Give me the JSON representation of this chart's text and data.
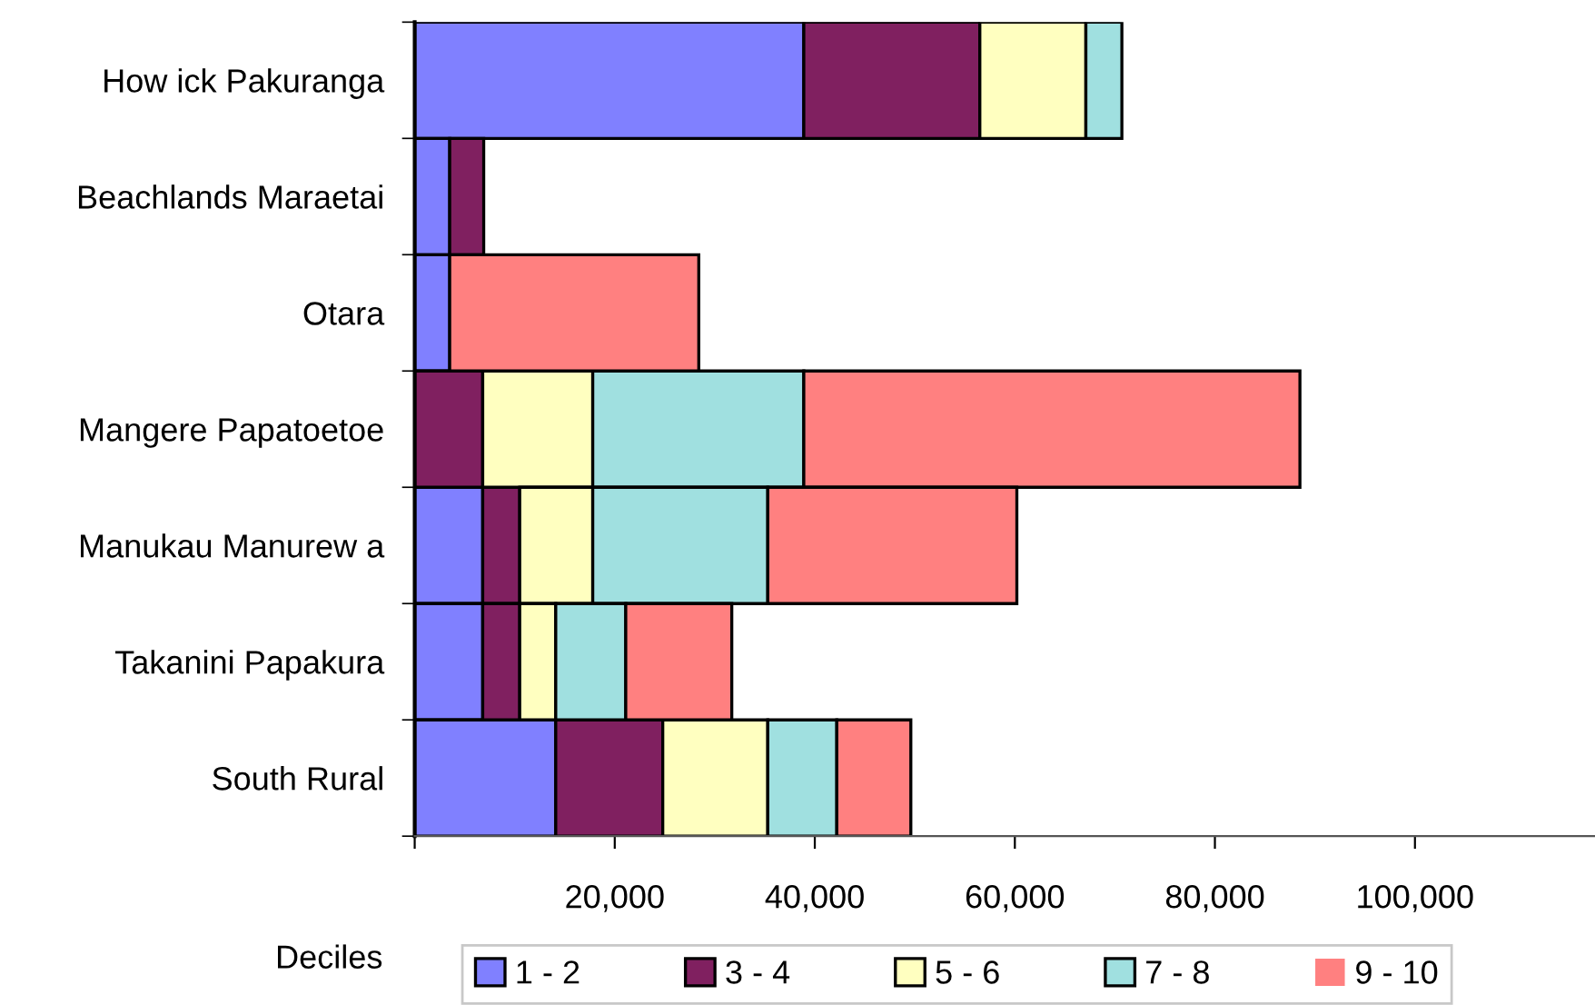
{
  "chart_data": {
    "type": "bar",
    "orientation": "horizontal",
    "stacked": true,
    "categories": [
      "How ick Pakuranga",
      "Beachlands Maraetai",
      "Otara",
      "Mangere Papatoetoe",
      "Manukau Manurew a",
      "Takanini Papakura",
      "South Rural"
    ],
    "series": [
      {
        "name": "1 - 2",
        "color": "#8080ff",
        "values": [
          38900,
          3500,
          3500,
          0,
          6800,
          6800,
          14100
        ]
      },
      {
        "name": "3 - 4",
        "color": "#802060",
        "values": [
          17600,
          3400,
          0,
          6800,
          3700,
          3700,
          10700
        ]
      },
      {
        "name": "5 - 6",
        "color": "#ffffc0",
        "values": [
          10600,
          0,
          0,
          11000,
          7300,
          3600,
          10500
        ]
      },
      {
        "name": "7 - 8",
        "color": "#a0e0e0",
        "values": [
          3600,
          0,
          0,
          21100,
          17500,
          7000,
          6900
        ]
      },
      {
        "name": "9 - 10",
        "color": "#ff8080",
        "values": [
          0,
          0,
          24900,
          49600,
          24900,
          10600,
          7400
        ]
      }
    ],
    "xlim": [
      0,
      118000
    ],
    "xticks": [
      {
        "value": 0,
        "label": null
      },
      {
        "value": 20000,
        "label": "20,000"
      },
      {
        "value": 40000,
        "label": "40,000"
      },
      {
        "value": 60000,
        "label": "60,000"
      },
      {
        "value": 80000,
        "label": "80,000"
      },
      {
        "value": 100000,
        "label": "100,000"
      }
    ],
    "legend_title": "Deciles",
    "legend": "bottom",
    "grid": false
  }
}
